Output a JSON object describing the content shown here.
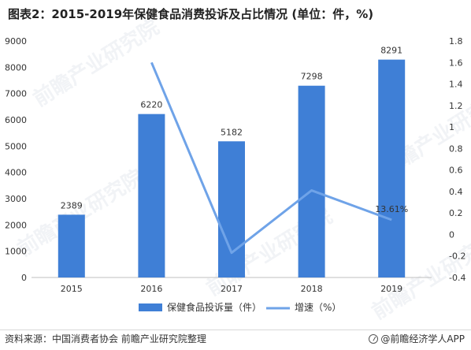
{
  "title": "图表2：2015-2019年保健食品消费投诉及占比情况 (单位：件，%)",
  "footer": {
    "source": "资料来源：中国消费者协会 前瞻产业研究院整理",
    "brand": "@前瞻经济学人APP"
  },
  "watermark": "前瞻产业研究院",
  "colors": {
    "bar": "#3F7FD6",
    "line": "#6FA3E8",
    "axis": "#bfbfbf",
    "text": "#333333"
  },
  "chart_data": {
    "type": "bar",
    "categories": [
      "2015",
      "2016",
      "2017",
      "2018",
      "2019"
    ],
    "series": [
      {
        "name": "保健食品投诉量（件）",
        "type": "bar",
        "axis": "left",
        "values": [
          2389,
          6220,
          5182,
          7298,
          8291
        ]
      },
      {
        "name": "增速（%）",
        "type": "line",
        "axis": "right",
        "values": [
          null,
          1.6,
          -0.17,
          0.41,
          0.1361
        ]
      }
    ],
    "annotations": [
      "13.61%"
    ],
    "y_left": {
      "min": 0,
      "max": 9000,
      "ticks": [
        "0",
        "1000",
        "2000",
        "3000",
        "4000",
        "5000",
        "6000",
        "7000",
        "8000",
        "9000"
      ]
    },
    "y_right": {
      "min": -0.4,
      "max": 1.8,
      "ticks": [
        "-0.4",
        "-0.2",
        "0",
        "0.2",
        "0.4",
        "0.6",
        "0.8",
        "1",
        "1.2",
        "1.4",
        "1.6",
        "1.8"
      ]
    },
    "legend": "bottom",
    "grid": false
  }
}
